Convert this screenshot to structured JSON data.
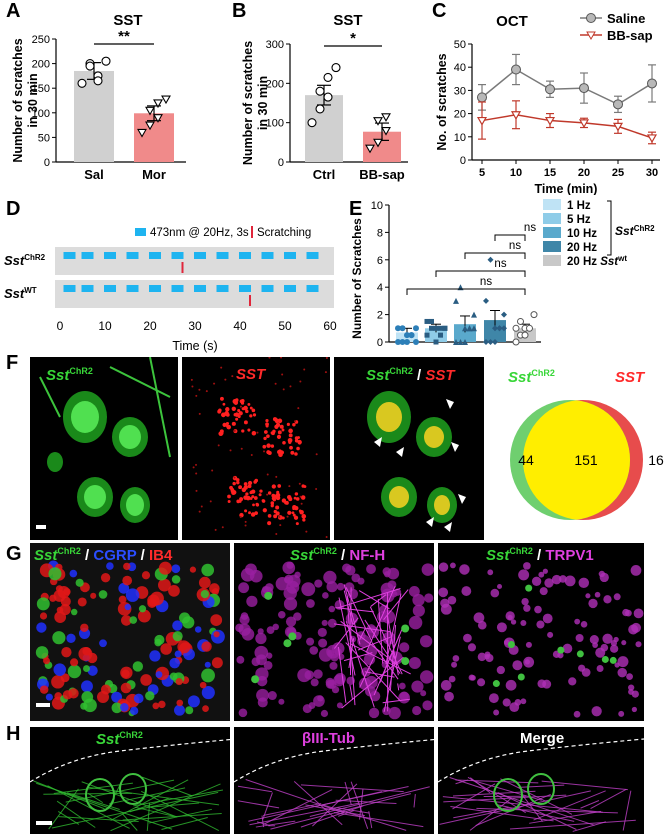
{
  "panels": {
    "A": "A",
    "B": "B",
    "C": "C",
    "D": "D",
    "E": "E",
    "F": "F",
    "G": "G",
    "H": "H"
  },
  "chart_data": [
    {
      "id": "A",
      "type": "bar",
      "title": "SST",
      "ylabel": "Number of scratches in 30 min",
      "ylabel_lines": [
        "Number of scratches",
        "in 30 min"
      ],
      "categories": [
        "Sal",
        "Mor"
      ],
      "values": [
        185,
        99
      ],
      "errors": [
        17,
        15
      ],
      "ylim": [
        0,
        250
      ],
      "yticks": [
        0,
        50,
        100,
        150,
        200,
        250
      ],
      "bar_colors": [
        "#d0d0d0",
        "#f08a8a"
      ],
      "points": [
        [
          160,
          200,
          175,
          195,
          165,
          205
        ],
        [
          60,
          75,
          90,
          105,
          120,
          128
        ]
      ],
      "significance": "**"
    },
    {
      "id": "B",
      "type": "bar",
      "title": "SST",
      "ylabel": "Number of scratches in 30 min",
      "ylabel_lines": [
        "Number of scratches",
        "in 30 min"
      ],
      "categories": [
        "Ctrl",
        "BB-sap"
      ],
      "values": [
        170,
        77
      ],
      "errors": [
        25,
        22
      ],
      "ylim": [
        0,
        300
      ],
      "yticks": [
        0,
        100,
        200,
        300
      ],
      "bar_colors": [
        "#d0d0d0",
        "#f08a8a"
      ],
      "points": [
        [
          100,
          135,
          165,
          180,
          215,
          240
        ],
        [
          35,
          50,
          80,
          105,
          115
        ]
      ],
      "significance": "*"
    },
    {
      "id": "C",
      "type": "line",
      "title": "OCT",
      "xlabel": "Time (min)",
      "ylabel": "No. of scratches",
      "x": [
        5,
        10,
        15,
        20,
        25,
        30
      ],
      "xticks": [
        5,
        10,
        15,
        20,
        25,
        30
      ],
      "ylim": [
        0,
        50
      ],
      "yticks": [
        0,
        10,
        20,
        30,
        40,
        50
      ],
      "series": [
        {
          "name": "Saline",
          "values": [
            27,
            39,
            30.5,
            31,
            24,
            33
          ],
          "errors": [
            5.5,
            6.5,
            3.5,
            6.5,
            3.5,
            8
          ],
          "color": "#7a7a7a",
          "marker": "circle"
        },
        {
          "name": "BB-sap",
          "values": [
            17,
            19.5,
            17,
            16,
            14.5,
            9.5
          ],
          "errors": [
            8,
            6,
            3,
            2,
            3,
            2.5
          ],
          "color": "#c0392b",
          "marker": "triangle"
        }
      ],
      "legend": "top-right"
    },
    {
      "id": "D",
      "type": "raster",
      "legend_stim": "473nm @ 20Hz, 3s",
      "legend_scratch": "Scratching",
      "rows": [
        {
          "label": "Sst",
          "sup": "ChR2",
          "scratch_times": [
            27
          ]
        },
        {
          "label": "Sst",
          "sup": "WT",
          "scratch_times": [
            42
          ]
        }
      ],
      "stim_times": [
        1,
        5,
        10,
        15,
        20,
        25,
        30,
        35,
        40,
        45,
        50,
        55
      ],
      "xlabel": "Time (s)",
      "xticks": [
        0,
        10,
        20,
        30,
        40,
        50,
        60
      ],
      "xlim": [
        0,
        60
      ]
    },
    {
      "id": "E",
      "type": "bar",
      "ylabel": "Number of Scratches",
      "categories": [
        "1 Hz",
        "5 Hz",
        "10 Hz",
        "20 Hz",
        "20 Hz"
      ],
      "values": [
        0.7,
        1.0,
        1.3,
        1.6,
        1.0
      ],
      "errors": [
        0.3,
        0.3,
        0.6,
        0.7,
        0.3
      ],
      "ylim": [
        0,
        10
      ],
      "yticks": [
        0,
        2,
        4,
        6,
        8,
        10
      ],
      "bar_colors": [
        "#bfe3f5",
        "#8fcce8",
        "#5aa9cc",
        "#3f86a8",
        "#c8c8c8"
      ],
      "legend": [
        {
          "label": "1 Hz",
          "color": "#bfe3f5"
        },
        {
          "label": "5 Hz",
          "color": "#8fcce8"
        },
        {
          "label": "10 Hz",
          "color": "#5aa9cc"
        },
        {
          "label": "20 Hz",
          "color": "#3f86a8"
        },
        {
          "label": "20 Hz",
          "color": "#c8c8c8",
          "suffix": "Sst",
          "suffix_sup": "wt"
        }
      ],
      "group_label": "Sst",
      "group_label_sup": "ChR2",
      "significance": [
        "ns",
        "ns",
        "ns",
        "ns"
      ]
    },
    {
      "id": "F-venn",
      "type": "venn",
      "sets": [
        {
          "label": "Sst",
          "sup": "ChR2",
          "only": 44,
          "color": "#6fcf6f"
        },
        {
          "label": "SST",
          "only": 16,
          "color": "#e74c4c"
        }
      ],
      "overlap": 151,
      "overlap_color": "#ffee00"
    }
  ],
  "micrographs": {
    "F": [
      {
        "label": "Sst",
        "sup": "ChR2",
        "label_color": "#38d638"
      },
      {
        "label": "SST",
        "label_color": "#ff2a2a"
      },
      {
        "label": "Sst",
        "sup": "ChR2",
        "label2": " / ",
        "label3": "SST",
        "label_color": "#38d638",
        "label3_color": "#ff2a2a"
      }
    ],
    "G": [
      {
        "parts": [
          [
            "Sst",
            "#38d638",
            true
          ],
          [
            "ChR2",
            "#38d638",
            "sup"
          ],
          [
            " / ",
            "#fff",
            false
          ],
          [
            "CGRP",
            "#2b4dff",
            false
          ],
          [
            " / ",
            "#fff",
            false
          ],
          [
            "IB4",
            "#ff2a2a",
            false
          ]
        ]
      },
      {
        "parts": [
          [
            "Sst",
            "#38d638",
            true
          ],
          [
            "ChR2",
            "#38d638",
            "sup"
          ],
          [
            " / ",
            "#fff",
            false
          ],
          [
            "NF-H",
            "#e040e0",
            false
          ]
        ]
      },
      {
        "parts": [
          [
            "Sst",
            "#38d638",
            true
          ],
          [
            "ChR2",
            "#38d638",
            "sup"
          ],
          [
            " / ",
            "#fff",
            false
          ],
          [
            "TRPV1",
            "#e040e0",
            false
          ]
        ]
      }
    ],
    "H": [
      {
        "parts": [
          [
            "Sst",
            "#38d638",
            true
          ],
          [
            "ChR2",
            "#38d638",
            "sup"
          ]
        ]
      },
      {
        "parts": [
          [
            "βIII-Tub",
            "#e040e0",
            false
          ]
        ]
      },
      {
        "parts": [
          [
            "Merge",
            "#ffffff",
            false
          ]
        ]
      }
    ]
  }
}
